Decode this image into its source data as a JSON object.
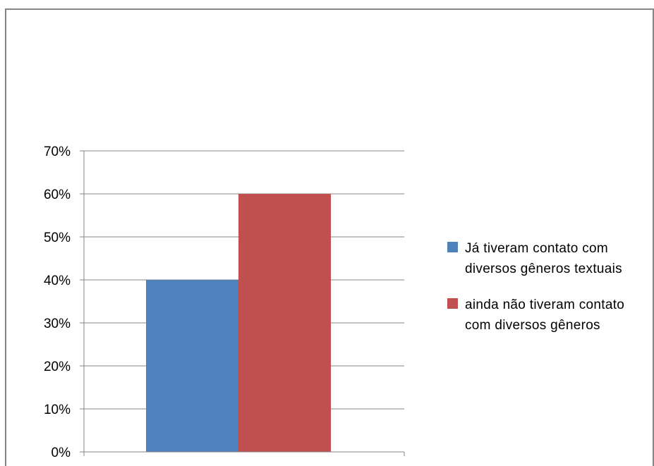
{
  "chart_data": {
    "type": "bar",
    "title": "",
    "xlabel": "",
    "ylabel": "",
    "categories": [
      ""
    ],
    "ylim": [
      0,
      70
    ],
    "y_ticks": [
      "0%",
      "10%",
      "20%",
      "30%",
      "40%",
      "50%",
      "60%",
      "70%"
    ],
    "y_unit": "%",
    "grid": true,
    "legend_position": "right",
    "series": [
      {
        "name": "Já tiveram contato com diversos gêneros textuais",
        "values": [
          40
        ],
        "color": "#4F81BD"
      },
      {
        "name": "ainda não tiveram contato com diversos gêneros",
        "values": [
          60
        ],
        "color": "#C0504D"
      }
    ]
  }
}
